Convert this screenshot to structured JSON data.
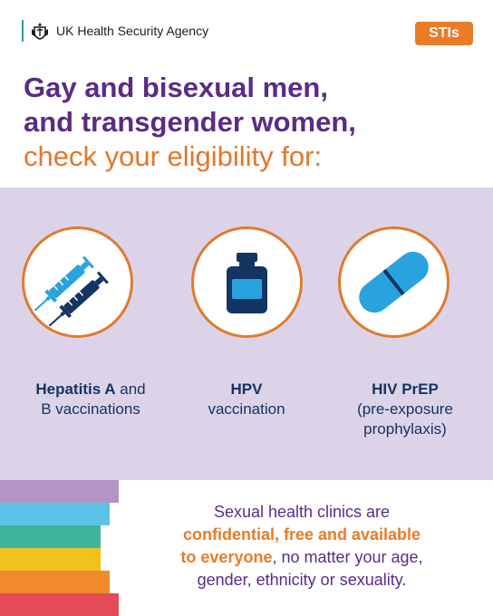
{
  "header": {
    "agency_name": "UK Health Security Agency",
    "badge": "STIs"
  },
  "headline": {
    "line1": "Gay and bisexual men,",
    "line2": "and transgender women,",
    "line3": "check your eligibility for:"
  },
  "items": [
    {
      "icon": "syringes-icon",
      "label_bold": "Hepatitis A",
      "label_rest": " and",
      "label_line2": "B vaccinations"
    },
    {
      "icon": "vaccine-vial-icon",
      "label_bold": "HPV",
      "label_line2": "vaccination"
    },
    {
      "icon": "pill-icon",
      "label_bold": "HIV PrEP",
      "label_line2": "(pre-exposure",
      "label_line3": "prophylaxis)"
    }
  ],
  "footer": {
    "line1": "Sexual health clinics are",
    "highlight1": "confidential, free and available",
    "highlight2": "to everyone",
    "line3_rest": ", no matter your age,",
    "line4": "gender, ethnicity or sexuality."
  },
  "colors": {
    "purple": "#5b2b86",
    "orange": "#ea7b27",
    "navy": "#143463",
    "panel": "#ddd3e8",
    "light_blue": "#29a3dd",
    "stripes": [
      "#b493c6",
      "#5cc3e8",
      "#3fb59b",
      "#f2c21c",
      "#f08a2c",
      "#e54b59"
    ]
  }
}
